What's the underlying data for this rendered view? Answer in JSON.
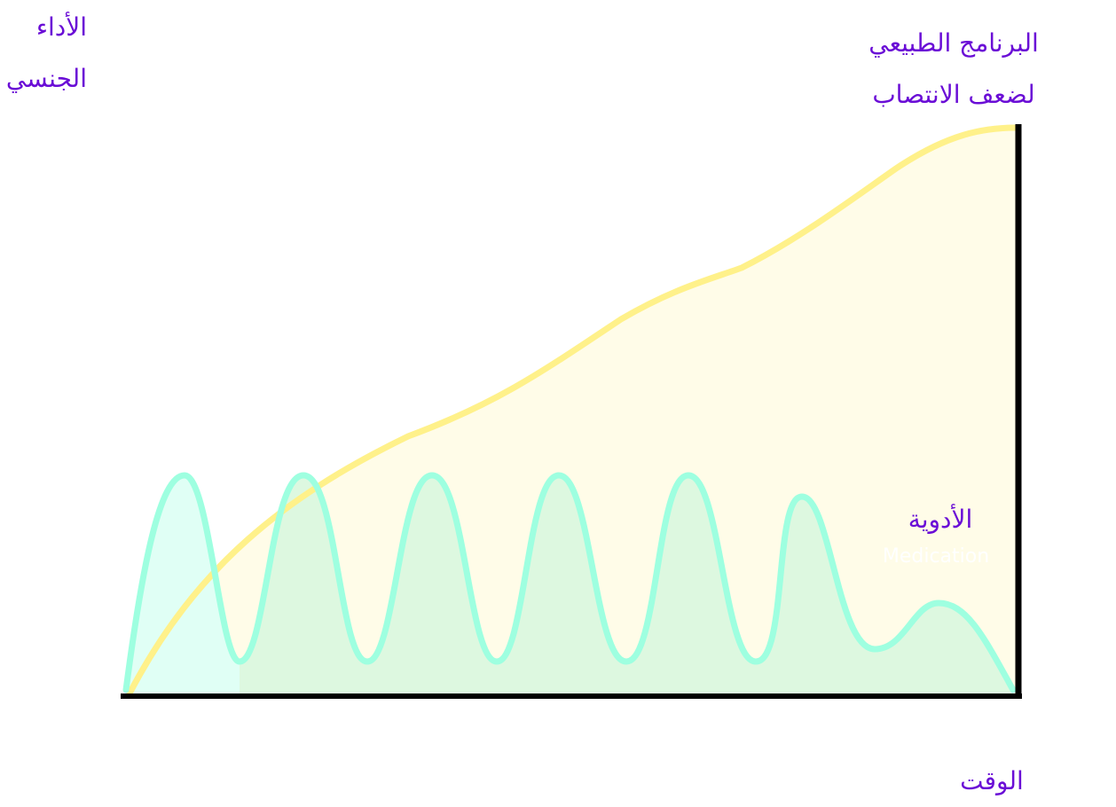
{
  "labels": {
    "y_axis": [
      "الأداء",
      "الجنسي"
    ],
    "natural_program": [
      "البرنامج الطبيعي",
      "لضعف الانتصاب"
    ],
    "medication": "الأدوية",
    "medication_sub": "Medication",
    "x_axis": "الوقت"
  },
  "colors": {
    "label_text": "#6a0dd6",
    "axis": "#000000",
    "natural_line": "#fff18a",
    "natural_fill": "#fffce8",
    "medication_line": "#9effe0",
    "medication_fill_first": "#e0fff5",
    "medication_fill": "#ddf8e0",
    "medication_sub_text": "#ffffff"
  }
}
